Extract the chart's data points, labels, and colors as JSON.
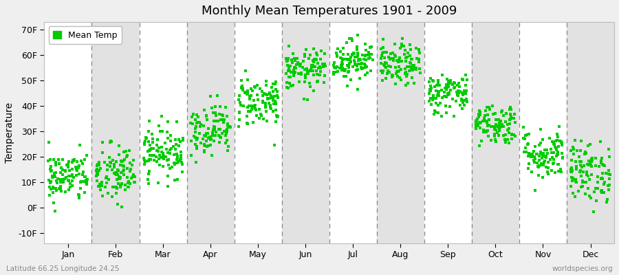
{
  "title": "Monthly Mean Temperatures 1901 - 2009",
  "ylabel": "Temperature",
  "xlabel_labels": [
    "Jan",
    "Feb",
    "Mar",
    "Apr",
    "May",
    "Jun",
    "Jul",
    "Aug",
    "Sep",
    "Oct",
    "Nov",
    "Dec"
  ],
  "ylim": [
    -14,
    73
  ],
  "yticks": [
    -10,
    0,
    10,
    20,
    30,
    40,
    50,
    60,
    70
  ],
  "ytick_labels": [
    "-10F",
    "0F",
    "10F",
    "20F",
    "30F",
    "40F",
    "50F",
    "60F",
    "70F"
  ],
  "dot_color": "#00CC00",
  "bg_color": "#EFEFEF",
  "white_band_color": "#FFFFFF",
  "gray_band_color": "#E2E2E2",
  "legend_label": "Mean Temp",
  "subtitle_left": "Latitude 66.25 Longitude 24.25",
  "subtitle_right": "worldspecies.org",
  "n_years": 109,
  "monthly_means_F": [
    12,
    13,
    22,
    31,
    42,
    54,
    58,
    56,
    45,
    33,
    21,
    14
  ],
  "monthly_stds_F": [
    5,
    6,
    5,
    5,
    5,
    4,
    4,
    4,
    4,
    4,
    5,
    6
  ],
  "dot_size": 5,
  "jitter": 0.42
}
